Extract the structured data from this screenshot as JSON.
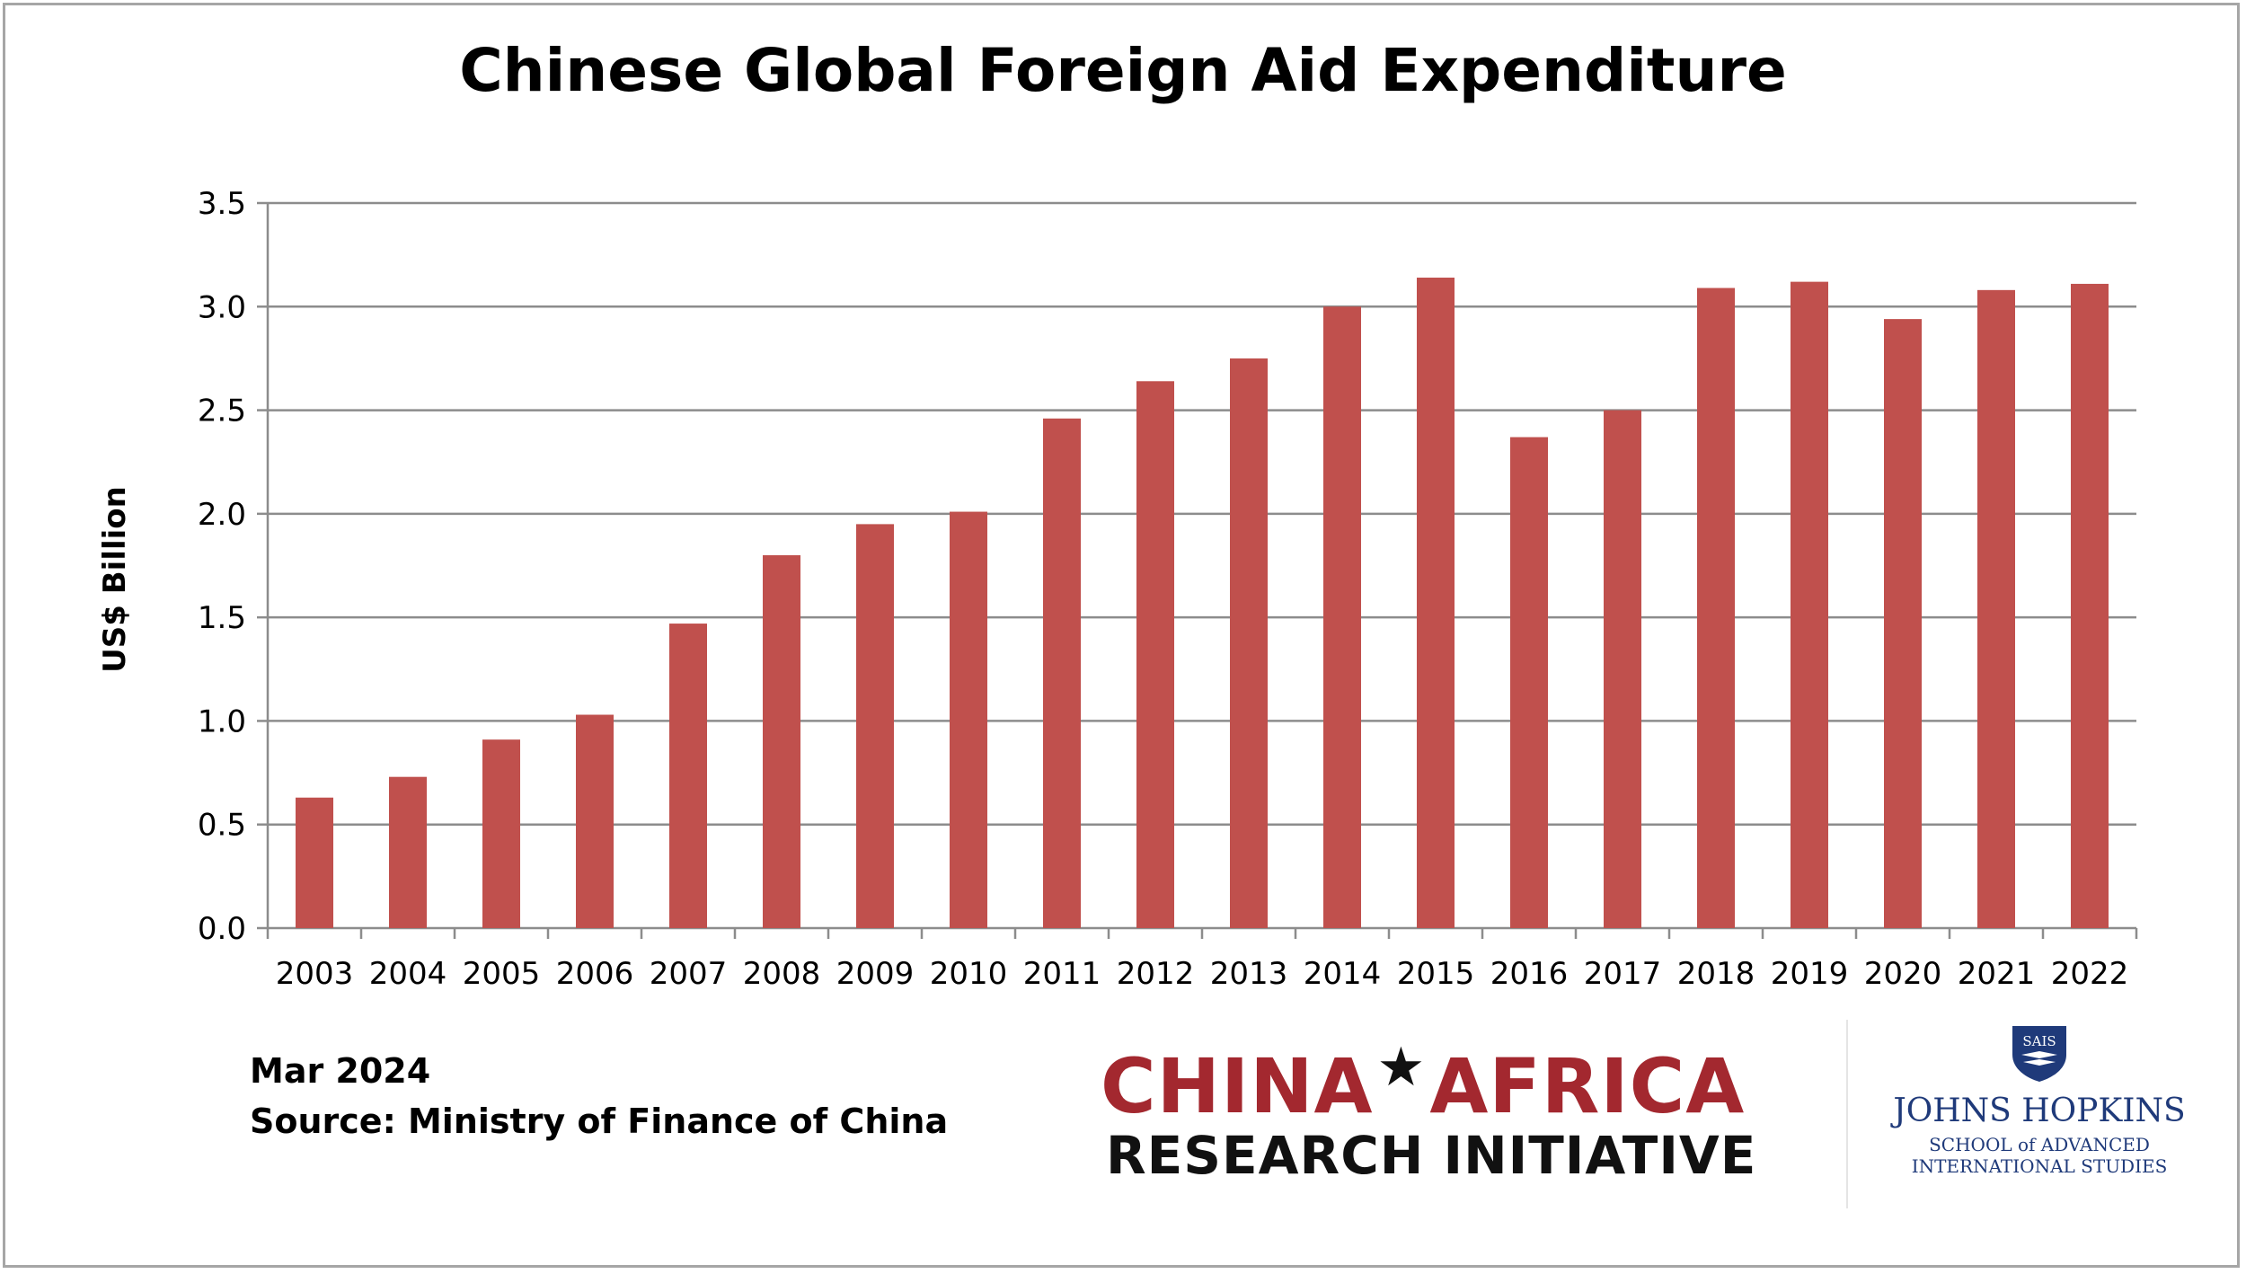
{
  "chart_data": {
    "type": "bar",
    "title": "Chinese Global Foreign Aid Expenditure",
    "xlabel": "",
    "ylabel": "US$ Billion",
    "categories": [
      "2003",
      "2004",
      "2005",
      "2006",
      "2007",
      "2008",
      "2009",
      "2010",
      "2011",
      "2012",
      "2013",
      "2014",
      "2015",
      "2016",
      "2017",
      "2018",
      "2019",
      "2020",
      "2021",
      "2022"
    ],
    "series": [
      {
        "values": [
          0.63,
          0.73,
          0.91,
          1.03,
          1.47,
          1.8,
          1.95,
          2.01,
          2.46,
          2.64,
          2.75,
          3.0,
          3.14,
          2.37,
          2.5,
          3.09,
          3.12,
          2.94,
          3.08,
          3.11
        ],
        "color": "#c0504d"
      }
    ],
    "ylim": [
      0,
      3.5
    ],
    "yticks": [
      "0.0",
      "0.5",
      "1.0",
      "1.5",
      "2.0",
      "2.5",
      "3.0",
      "3.5"
    ],
    "grid": true,
    "legend": "none"
  },
  "footer": {
    "date": "Mar 2024",
    "source": "Source: Ministry of Finance of China"
  },
  "logos": {
    "car_line1_left": "CHINA",
    "car_line1_right": "AFRICA",
    "car_star": "★",
    "car_line2": "RESEARCH INITIATIVE",
    "shield_text": "SAIS",
    "jhu_name": "JOHNS HOPKINS",
    "jhu_school_line1": "SCHOOL of ADVANCED",
    "jhu_school_line2": "INTERNATIONAL STUDIES"
  },
  "colors": {
    "bar": "#c0504d",
    "grid": "#8c8c8c",
    "car_red": "#a3282f",
    "jhu_blue": "#1f3a7a"
  }
}
